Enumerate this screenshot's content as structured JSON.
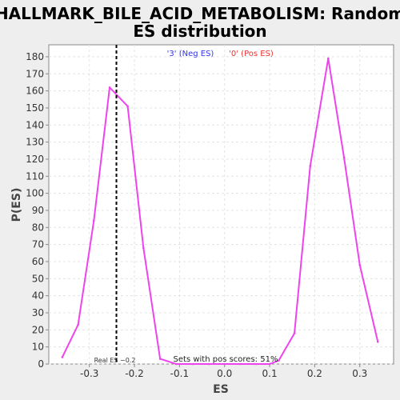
{
  "chart_data": {
    "type": "line",
    "title_line1": "HALLMARK_BILE_ACID_METABOLISM: Random",
    "title_line2": "ES distribution",
    "xlabel": "ES",
    "ylabel": "P(ES)",
    "xlim": [
      -0.39,
      0.375
    ],
    "ylim": [
      0,
      187
    ],
    "x_ticks": [
      "-0.3",
      "-0.2",
      "-0.1",
      "0.0",
      "0.1",
      "0.2",
      "0.3"
    ],
    "x_tick_values": [
      -0.3,
      -0.2,
      -0.1,
      0.0,
      0.1,
      0.2,
      0.3
    ],
    "y_ticks": [
      0,
      10,
      20,
      30,
      40,
      50,
      60,
      70,
      80,
      90,
      100,
      110,
      120,
      130,
      140,
      150,
      160,
      170,
      180
    ],
    "grid": true,
    "line_color": "#ee44ee",
    "background_color": "#ffffff",
    "figure_background": "#eeeeee",
    "series": [
      {
        "x": [
          -0.36,
          -0.325,
          -0.29,
          -0.255,
          -0.215,
          -0.18,
          -0.143,
          -0.107,
          -0.07,
          -0.035,
          0.0,
          0.035,
          0.07,
          0.1,
          0.12,
          0.155,
          0.19,
          0.23,
          0.265,
          0.3,
          0.34
        ],
        "values": [
          4,
          23,
          84,
          162,
          151,
          68,
          3,
          0,
          0,
          0,
          0,
          0,
          0,
          0,
          2,
          18,
          116,
          179,
          121,
          58,
          13
        ]
      }
    ],
    "real_es": -0.24,
    "real_es_label": "Real ES −0.2",
    "legend": [
      {
        "label": "'3' (Neg ES)",
        "color": "#3333ee"
      },
      {
        "label": "'0' (Pos ES)",
        "color": "#ee3333"
      }
    ],
    "annotation": "Sets with pos scores: 51%"
  }
}
